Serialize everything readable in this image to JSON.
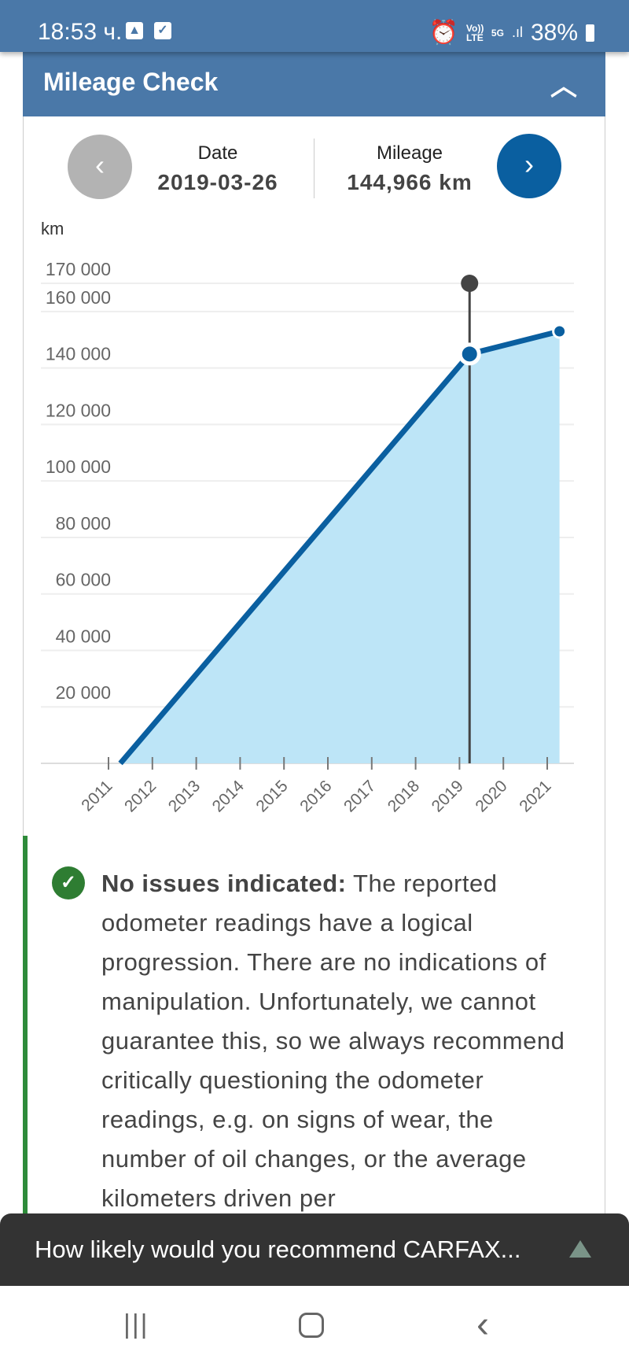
{
  "status_bar": {
    "time": "18:53 ч.",
    "battery": "38%",
    "network": "5G",
    "volte": "Vo)) LTE"
  },
  "header": {
    "title": "Mileage Check"
  },
  "selector": {
    "date_label": "Date",
    "date_value": "2019-03-26",
    "mileage_label": "Mileage",
    "mileage_value": "144,966 km"
  },
  "chart_data": {
    "type": "area",
    "ylabel": "km",
    "ylim": [
      0,
      170000
    ],
    "xlim": [
      2010.8,
      2021.8
    ],
    "yticks": [
      {
        "v": 20000,
        "label": "20 000"
      },
      {
        "v": 40000,
        "label": "40 000"
      },
      {
        "v": 60000,
        "label": "60 000"
      },
      {
        "v": 80000,
        "label": "80 000"
      },
      {
        "v": 100000,
        "label": "100 000"
      },
      {
        "v": 120000,
        "label": "120 000"
      },
      {
        "v": 140000,
        "label": "140 000"
      },
      {
        "v": 160000,
        "label": "160 000"
      },
      {
        "v": 170000,
        "label": "170 000"
      }
    ],
    "xticks": [
      "2011",
      "2012",
      "2013",
      "2014",
      "2015",
      "2016",
      "2017",
      "2018",
      "2019",
      "2020",
      "2021"
    ],
    "points": [
      {
        "x": 2011.27,
        "y": 0
      },
      {
        "x": 2019.23,
        "y": 144966
      },
      {
        "x": 2021.28,
        "y": 153000
      }
    ],
    "selected_index": 1,
    "colors": {
      "line": "#0a5fa0",
      "fill": "#bde5f7",
      "cursor": "#444444"
    }
  },
  "note": {
    "bold": "No issues indicated:",
    "text": " The reported odometer readings have a logical progression. There are no indications of manipulation. Unfortunately, we cannot guarantee this, so we always recommend critically questioning the odometer readings, e.g. on signs of wear, the number of oil changes, or the average kilometers driven per"
  },
  "survey": {
    "text": "How likely would you recommend CARFAX..."
  }
}
